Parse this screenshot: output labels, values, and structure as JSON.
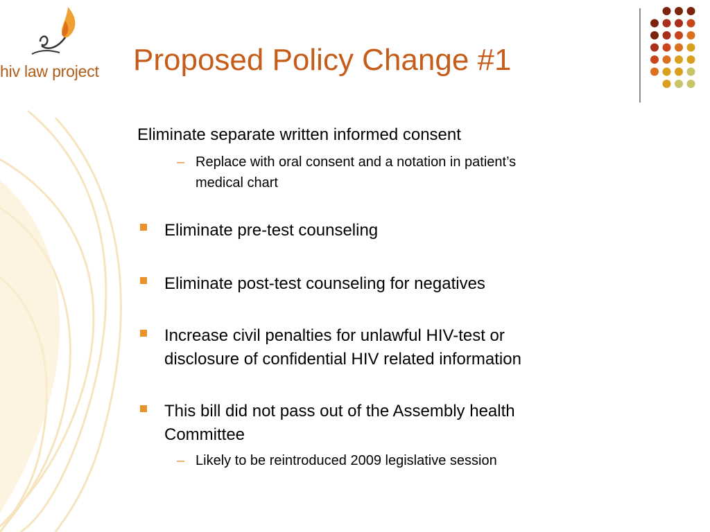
{
  "logo": {
    "text": "hiv law project",
    "icon": "torch-flame-icon",
    "color": "#b05c16",
    "flame_color": "#f0a030"
  },
  "slide": {
    "title": "Proposed Policy Change #1",
    "title_color": "#c55c1a",
    "bullet_color": "#e8922c",
    "items": [
      {
        "text": "Eliminate separate written informed consent",
        "bullet": "none",
        "sub_items": [
          {
            "text_lines": [
              "Replace with oral consent and a notation in patient’s",
              "medical chart"
            ]
          }
        ]
      },
      {
        "text": "Eliminate pre-test counseling",
        "bullet": "square"
      },
      {
        "text": "Eliminate post-test counseling for negatives",
        "bullet": "square"
      },
      {
        "text_lines": [
          "Increase civil penalties  for unlawful HIV-test or",
          "disclosure of confidential HIV related information"
        ],
        "bullet": "square"
      },
      {
        "text_lines": [
          "This bill did not pass out of the Assembly health",
          "Committee"
        ],
        "bullet": "square",
        "sub_items": [
          {
            "text": "Likely to be reintroduced 2009 legislative session"
          }
        ]
      }
    ]
  },
  "decoration": {
    "dot_colors": [
      "#7a2410",
      "#a8301a",
      "#c9451e",
      "#d9701e",
      "#d9a020",
      "#c9c46a"
    ],
    "swirl_color": "#f7e2b8"
  }
}
